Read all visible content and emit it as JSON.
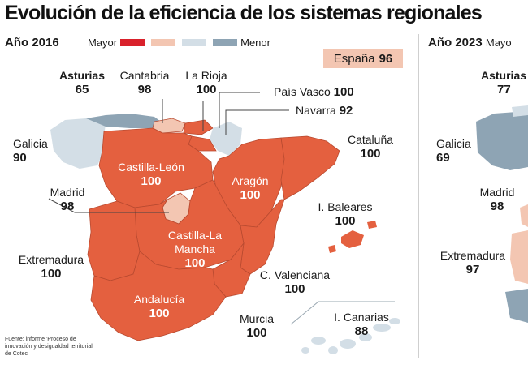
{
  "title": "Evolución de la eficiencia de los sistemas regionales",
  "legend": {
    "high_label": "Mayor",
    "low_label": "Menor",
    "colors": [
      "#d9212b",
      "#f3c6b2",
      "#d3dee6",
      "#8ea4b4"
    ]
  },
  "map_2016": {
    "year_label": "Año 2016",
    "national": {
      "name": "España",
      "value": "96"
    },
    "regions": [
      {
        "name": "Asturias",
        "value": "65"
      },
      {
        "name": "Cantabria",
        "value": "98"
      },
      {
        "name": "La Rioja",
        "value": "100"
      },
      {
        "name": "País Vasco",
        "value": "100"
      },
      {
        "name": "Navarra",
        "value": "92"
      },
      {
        "name": "Galicia",
        "value": "90"
      },
      {
        "name": "Cataluña",
        "value": "100"
      },
      {
        "name": "Castilla-León",
        "value": "100"
      },
      {
        "name": "Aragón",
        "value": "100"
      },
      {
        "name": "Madrid",
        "value": "98"
      },
      {
        "name": "I. Baleares",
        "value": "100"
      },
      {
        "name": "Castilla-La Mancha",
        "value": "100"
      },
      {
        "name": "Extremadura",
        "value": "100"
      },
      {
        "name": "C. Valenciana",
        "value": "100"
      },
      {
        "name": "Andalucía",
        "value": "100"
      },
      {
        "name": "Murcia",
        "value": "100"
      },
      {
        "name": "I. Canarias",
        "value": "88"
      }
    ]
  },
  "map_2023": {
    "year_label": "Año 2023",
    "legend_label": "Mayo",
    "regions": [
      {
        "name": "Asturias",
        "value": "77"
      },
      {
        "name": "Galicia",
        "value": "69"
      },
      {
        "name": "Madrid",
        "value": "98"
      },
      {
        "name": "Extremadura",
        "value": "97"
      }
    ]
  },
  "source": "Fuente: informe 'Proceso de innovación y desigualdad territorial' de Cotec",
  "colors": {
    "top": "#e4603f",
    "light": "#f3c6b2",
    "blue_light": "#d3dee6",
    "blue_dark": "#8ea4b4",
    "border": "#b84a30"
  }
}
